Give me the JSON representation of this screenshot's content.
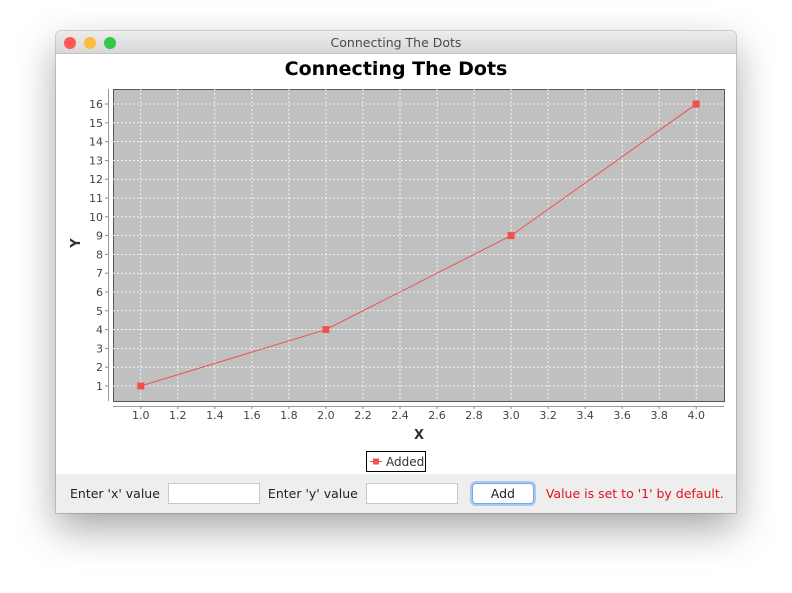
{
  "window": {
    "title": "Connecting The Dots",
    "controls": {
      "close": "#fc5753",
      "minimize": "#fdbc40",
      "zoom": "#33c748"
    }
  },
  "chart_data": {
    "type": "line",
    "title": "Connecting The Dots",
    "xlabel": "X",
    "ylabel": "Y",
    "xlim": [
      0.85,
      4.15
    ],
    "ylim": [
      0.2,
      16.8
    ],
    "xticks": [
      "1.0",
      "1.2",
      "1.4",
      "1.6",
      "1.8",
      "2.0",
      "2.2",
      "2.4",
      "2.6",
      "2.8",
      "3.0",
      "3.2",
      "3.4",
      "3.6",
      "3.8",
      "4.0"
    ],
    "yticks": [
      "1",
      "2",
      "3",
      "4",
      "5",
      "6",
      "7",
      "8",
      "9",
      "10",
      "11",
      "12",
      "13",
      "14",
      "15",
      "16"
    ],
    "grid": true,
    "legend": "bottom",
    "plot_background": "#c0c0c0",
    "series": [
      {
        "name": "Added",
        "color": "#f05050",
        "x": [
          1,
          2,
          3,
          4
        ],
        "y": [
          1,
          4,
          9,
          16
        ],
        "marker": "square"
      }
    ]
  },
  "controls": {
    "x_label": "Enter 'x' value",
    "x_value": "",
    "y_label": "Enter 'y' value",
    "y_value": "",
    "add_label": "Add",
    "message": "Value is set to '1' by default."
  }
}
